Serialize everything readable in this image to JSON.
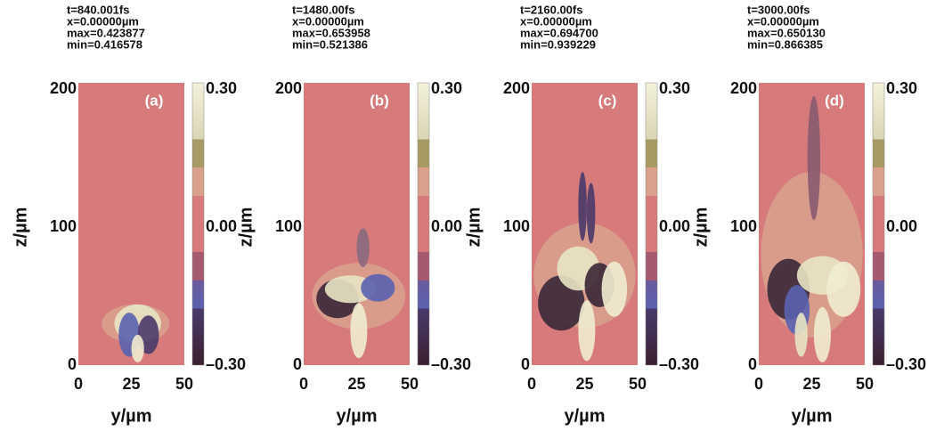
{
  "chart_data": [
    {
      "type": "image",
      "info": [
        "t=840.001fs",
        "x=0.00000µm",
        "max=0.423877",
        "min=0.416578"
      ],
      "panel_label": "(a)",
      "xlabel": "y/µm",
      "ylabel": "z/µm",
      "xlim": [
        0,
        50
      ],
      "ylim": [
        0,
        200
      ],
      "xticks": [
        0,
        25,
        50
      ],
      "yticks": [
        0,
        100,
        200
      ],
      "clim": [
        -0.3,
        0.3
      ],
      "cticks": [
        {
          "value": 0.3,
          "label": "0.30"
        },
        {
          "value": 0,
          "label": "0.00"
        },
        {
          "value": -0.3,
          "label": "–0.30"
        }
      ]
    },
    {
      "type": "image",
      "info": [
        "t=1480.00fs",
        "x=0.00000µm",
        "max=0.653958",
        "min=0.521386"
      ],
      "panel_label": "(b)",
      "xlabel": "y/µm",
      "ylabel": "z/µm",
      "xlim": [
        0,
        50
      ],
      "ylim": [
        0,
        200
      ],
      "xticks": [
        0,
        25,
        50
      ],
      "yticks": [
        0,
        100,
        200
      ],
      "clim": [
        -0.3,
        0.3
      ],
      "cticks": [
        {
          "value": 0.3,
          "label": "0.30"
        },
        {
          "value": 0,
          "label": "0.00"
        },
        {
          "value": -0.3,
          "label": "–0.30"
        }
      ]
    },
    {
      "type": "image",
      "info": [
        "t=2160.00fs",
        "x=0.00000µm",
        "max=0.694700",
        "min=0.939229"
      ],
      "panel_label": "(c)",
      "xlabel": "y/µm",
      "ylabel": "z/µm",
      "xlim": [
        0,
        50
      ],
      "ylim": [
        0,
        200
      ],
      "xticks": [
        0,
        25,
        50
      ],
      "yticks": [
        0,
        100,
        200
      ],
      "clim": [
        -0.3,
        0.3
      ],
      "cticks": [
        {
          "value": 0.3,
          "label": "0.30"
        },
        {
          "value": 0,
          "label": "0.00"
        },
        {
          "value": -0.3,
          "label": "–0.30"
        }
      ]
    },
    {
      "type": "image",
      "info": [
        "t=3000.00fs",
        "x=0.00000µm",
        "max=0.650130",
        "min=0.866385"
      ],
      "panel_label": "(d)",
      "xlabel": "y/µm",
      "ylabel": "z/µm",
      "xlim": [
        0,
        50
      ],
      "ylim": [
        0,
        200
      ],
      "xticks": [
        0,
        25,
        50
      ],
      "yticks": [
        0,
        100,
        200
      ],
      "clim": [
        -0.3,
        0.3
      ],
      "cticks": [
        {
          "value": 0.3,
          "label": "0.30"
        },
        {
          "value": 0,
          "label": "0.00"
        },
        {
          "value": -0.3,
          "label": "–0.30"
        }
      ]
    }
  ]
}
